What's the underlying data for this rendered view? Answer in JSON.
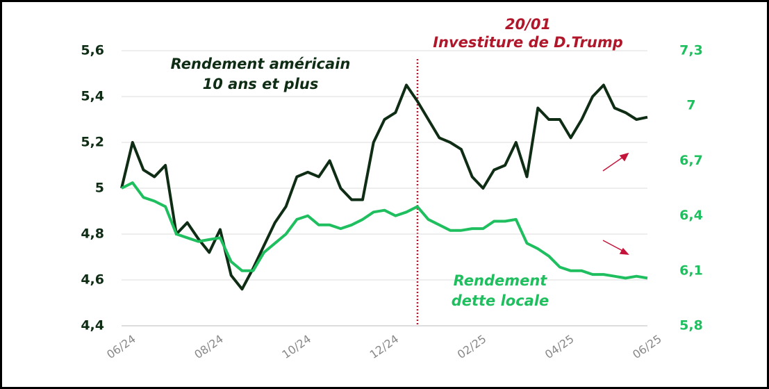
{
  "chart_data": {
    "type": "line",
    "categories": [
      "06/24",
      null,
      null,
      null,
      null,
      null,
      null,
      null,
      "08/24",
      null,
      null,
      null,
      null,
      null,
      null,
      null,
      "10/24",
      null,
      null,
      null,
      null,
      null,
      null,
      null,
      "12/24",
      null,
      null,
      null,
      null,
      null,
      null,
      null,
      "02/25",
      null,
      null,
      null,
      null,
      null,
      null,
      null,
      "04/25",
      null,
      null,
      null,
      null,
      null,
      null,
      null,
      "06/25"
    ],
    "series": [
      {
        "label_lines": [
          "Rendement américain",
          "10 ans et plus"
        ],
        "color": "#0f2d14",
        "axis": "y",
        "values": [
          5.0,
          5.2,
          5.08,
          5.05,
          5.1,
          4.8,
          4.85,
          4.78,
          4.72,
          4.82,
          4.62,
          4.56,
          4.65,
          4.75,
          4.85,
          4.92,
          5.05,
          5.07,
          5.05,
          5.12,
          5.0,
          4.95,
          4.95,
          5.2,
          5.3,
          5.33,
          5.45,
          5.38,
          5.3,
          5.22,
          5.2,
          5.17,
          5.05,
          5.0,
          5.08,
          5.1,
          5.2,
          5.05,
          5.35,
          5.3,
          5.3,
          5.22,
          5.3,
          5.4,
          5.45,
          5.35,
          5.33,
          5.3,
          5.31
        ]
      },
      {
        "label_lines": [
          "Rendement",
          "dette locale"
        ],
        "color": "#1fbf5f",
        "axis": "y2",
        "values": [
          6.55,
          6.58,
          6.5,
          6.48,
          6.45,
          6.3,
          6.28,
          6.26,
          6.27,
          6.28,
          6.15,
          6.1,
          6.1,
          6.2,
          6.25,
          6.3,
          6.38,
          6.4,
          6.35,
          6.35,
          6.33,
          6.35,
          6.38,
          6.42,
          6.43,
          6.4,
          6.42,
          6.45,
          6.38,
          6.35,
          6.32,
          6.32,
          6.33,
          6.33,
          6.37,
          6.37,
          6.38,
          6.25,
          6.22,
          6.18,
          6.12,
          6.1,
          6.1,
          6.08,
          6.08,
          6.07,
          6.06,
          6.07,
          6.06
        ]
      }
    ],
    "ylim": [
      4.4,
      5.6
    ],
    "yticks": [
      {
        "value": 4.4,
        "label": "4,4"
      },
      {
        "value": 4.6,
        "label": "4,6"
      },
      {
        "value": 4.8,
        "label": "4,8"
      },
      5,
      {
        "value": 5.2,
        "label": "5,2"
      },
      {
        "value": 5.4,
        "label": "5,4"
      },
      {
        "value": 5.6,
        "label": "5,6"
      }
    ],
    "y2lim": [
      5.8,
      7.3
    ],
    "y2ticks": [
      {
        "value": 5.8,
        "label": "5,8"
      },
      {
        "value": 6.1,
        "label": "6,1"
      },
      {
        "value": 6.4,
        "label": "6,4"
      },
      {
        "value": 6.7,
        "label": "6,7"
      },
      7,
      {
        "value": 7.3,
        "label": "7,3"
      }
    ],
    "grid": true,
    "annotation": {
      "lines": [
        "20/01",
        "Investiture de D.Trump"
      ],
      "color": "#b0172b"
    }
  }
}
